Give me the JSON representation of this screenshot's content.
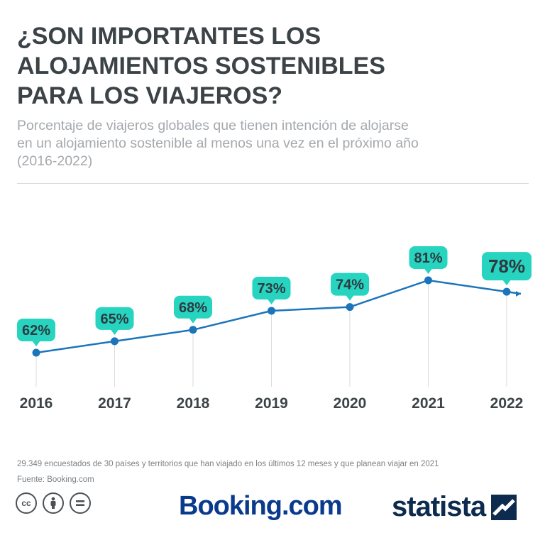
{
  "header": {
    "title_lines": [
      "¿Son importantes los",
      "alojamientos sostenibles",
      "para los viajeros?"
    ],
    "subtitle_lines": [
      "Porcentaje de viajeros globales que tienen intención de alojarse",
      "en un alojamiento sostenible al menos una vez en el próximo año",
      "(2016-2022)"
    ]
  },
  "chart_data": {
    "type": "line",
    "title": "¿Son importantes los alojamientos sostenibles para los viajeros?",
    "x": [
      "2016",
      "2017",
      "2018",
      "2019",
      "2020",
      "2021",
      "2022"
    ],
    "values": [
      62,
      65,
      68,
      73,
      74,
      81,
      78
    ],
    "data_labels": [
      "62%",
      "65%",
      "68%",
      "73%",
      "74%",
      "81%",
      "78%"
    ],
    "unit": "%",
    "grid": false,
    "legend": "none"
  },
  "footer": {
    "note": "29.349 encuestados de 30 países y territorios que han viajado en los últimos 12 meses y que planean viajar en 2021",
    "source": "Fuente: Booking.com",
    "license_icons": [
      "cc-icon",
      "by-person-icon",
      "nd-equals-icon"
    ],
    "booking_logo": "Booking.com",
    "statista_logo": "statista"
  },
  "colors": {
    "line": "#1b75bb",
    "label_bubble": "#26d4c0",
    "title": "#3b4347",
    "subtitle": "#a5a9ad"
  }
}
